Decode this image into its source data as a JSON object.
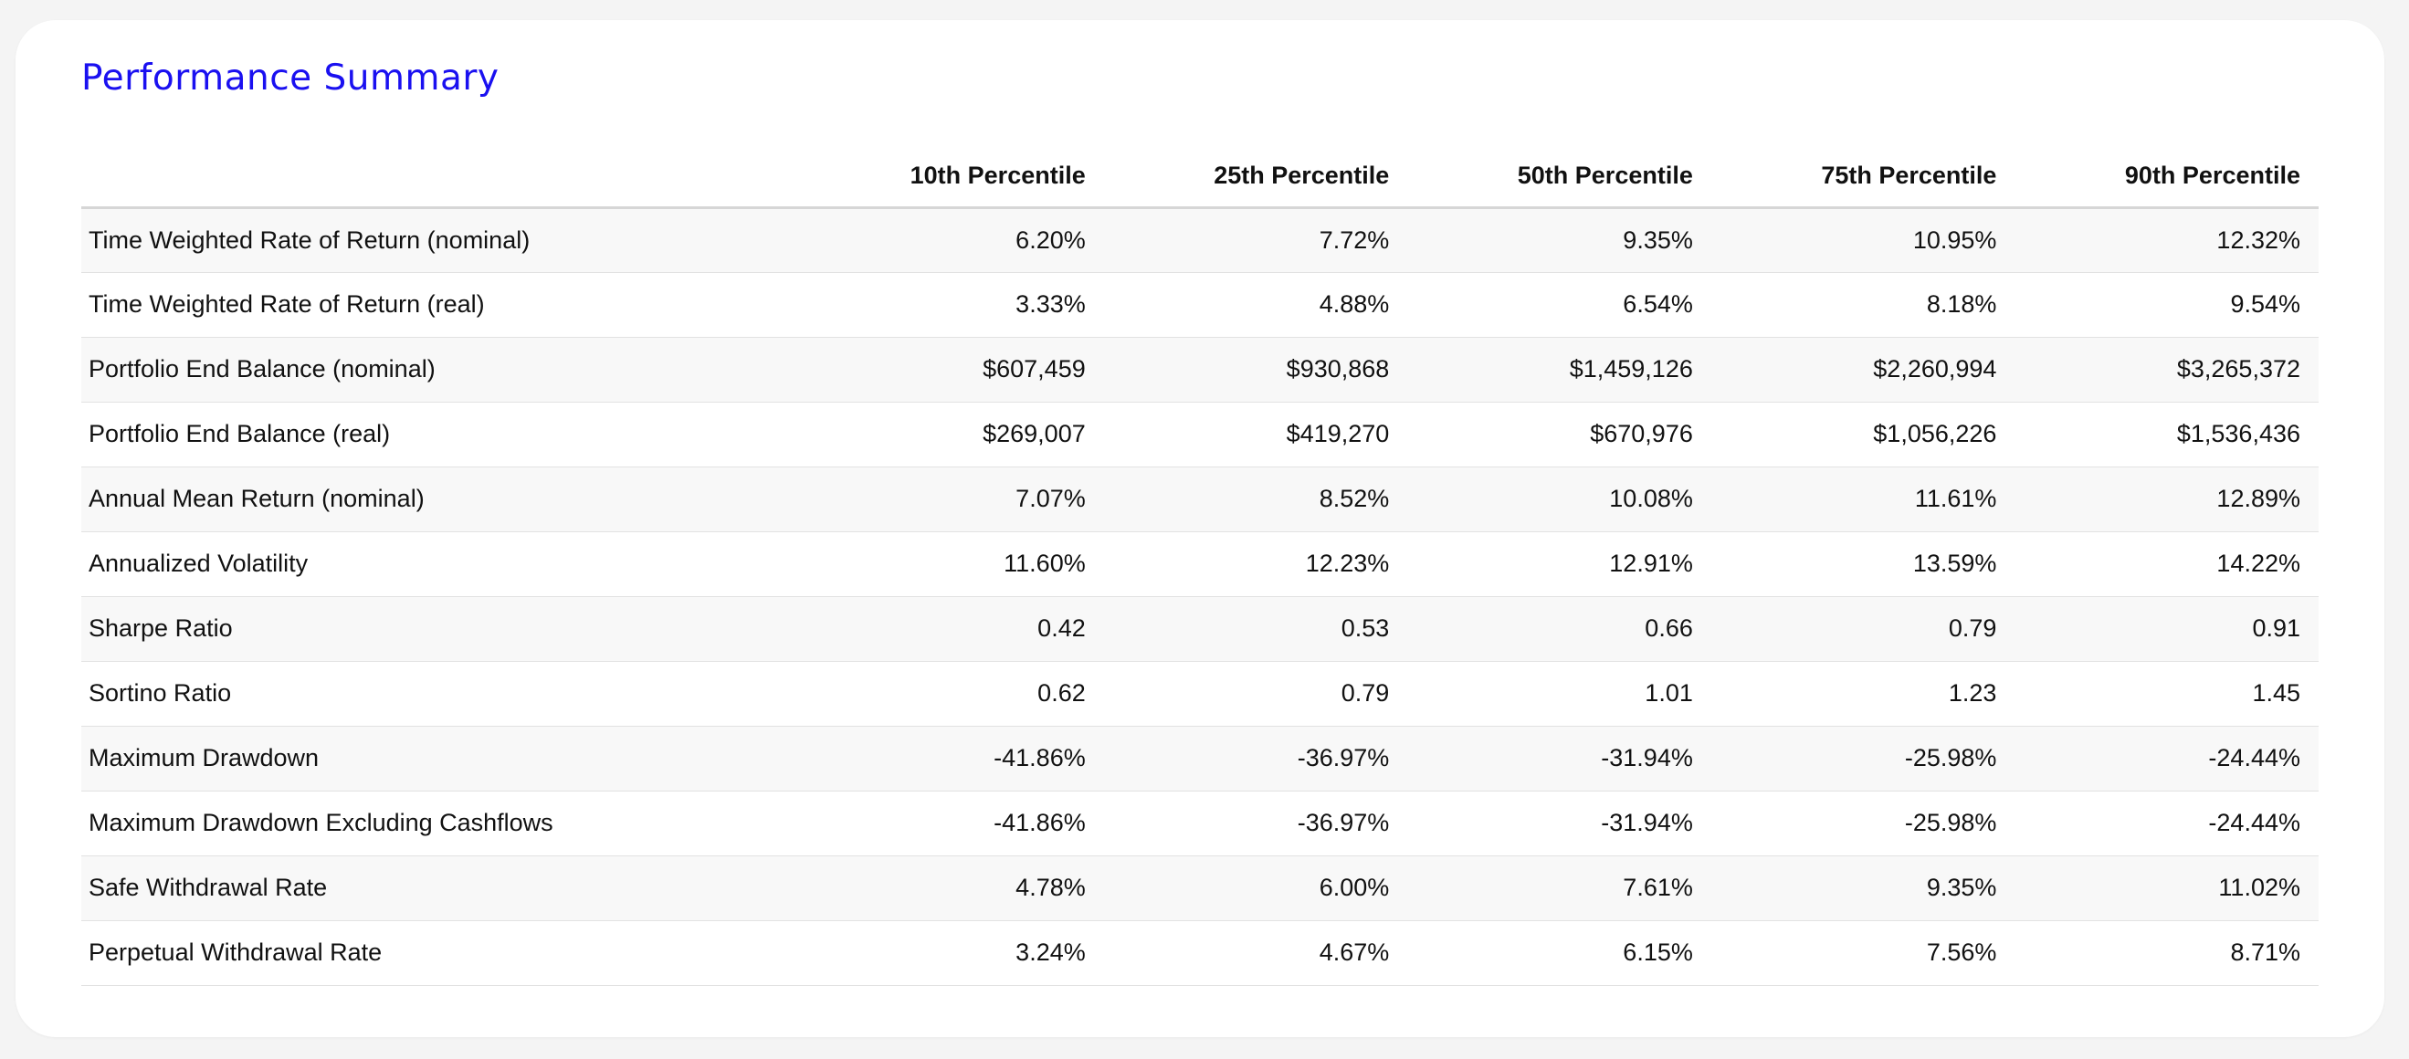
{
  "title": "Performance Summary",
  "table": {
    "columns": [
      "",
      "10th Percentile",
      "25th Percentile",
      "50th Percentile",
      "75th Percentile",
      "90th Percentile"
    ],
    "rows": [
      {
        "label": "Time Weighted Rate of Return (nominal)",
        "values": [
          "6.20%",
          "7.72%",
          "9.35%",
          "10.95%",
          "12.32%"
        ]
      },
      {
        "label": "Time Weighted Rate of Return (real)",
        "values": [
          "3.33%",
          "4.88%",
          "6.54%",
          "8.18%",
          "9.54%"
        ]
      },
      {
        "label": "Portfolio End Balance (nominal)",
        "values": [
          "$607,459",
          "$930,868",
          "$1,459,126",
          "$2,260,994",
          "$3,265,372"
        ]
      },
      {
        "label": "Portfolio End Balance (real)",
        "values": [
          "$269,007",
          "$419,270",
          "$670,976",
          "$1,056,226",
          "$1,536,436"
        ]
      },
      {
        "label": "Annual Mean Return (nominal)",
        "values": [
          "7.07%",
          "8.52%",
          "10.08%",
          "11.61%",
          "12.89%"
        ]
      },
      {
        "label": "Annualized Volatility",
        "values": [
          "11.60%",
          "12.23%",
          "12.91%",
          "13.59%",
          "14.22%"
        ]
      },
      {
        "label": "Sharpe Ratio",
        "values": [
          "0.42",
          "0.53",
          "0.66",
          "0.79",
          "0.91"
        ]
      },
      {
        "label": "Sortino Ratio",
        "values": [
          "0.62",
          "0.79",
          "1.01",
          "1.23",
          "1.45"
        ]
      },
      {
        "label": "Maximum Drawdown",
        "values": [
          "-41.86%",
          "-36.97%",
          "-31.94%",
          "-25.98%",
          "-24.44%"
        ]
      },
      {
        "label": "Maximum Drawdown Excluding Cashflows",
        "values": [
          "-41.86%",
          "-36.97%",
          "-31.94%",
          "-25.98%",
          "-24.44%"
        ]
      },
      {
        "label": "Safe Withdrawal Rate",
        "values": [
          "4.78%",
          "6.00%",
          "7.61%",
          "9.35%",
          "11.02%"
        ]
      },
      {
        "label": "Perpetual Withdrawal Rate",
        "values": [
          "3.24%",
          "4.67%",
          "6.15%",
          "7.56%",
          "8.71%"
        ]
      }
    ]
  },
  "colors": {
    "title": "#1a10f0",
    "stripe": "#f8f8f8",
    "text": "#111111"
  }
}
